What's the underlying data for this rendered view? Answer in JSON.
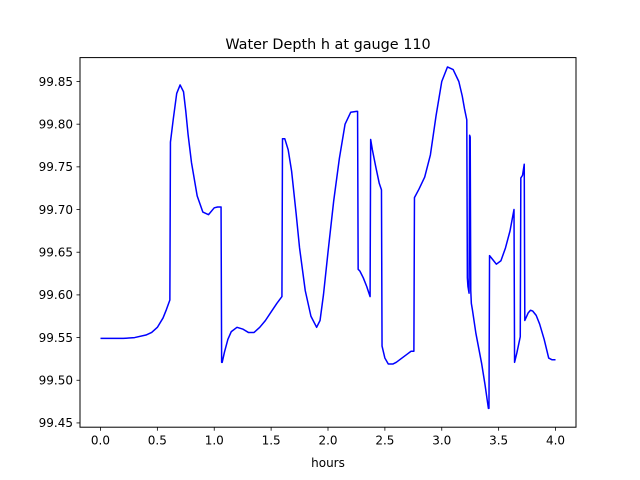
{
  "chart_data": {
    "type": "line",
    "title": "Water Depth h at gauge 110",
    "xlabel": "hours",
    "ylabel": "",
    "xlim": [
      -0.18,
      4.18
    ],
    "ylim": [
      99.445,
      99.878
    ],
    "grid": false,
    "x_ticks": [
      0.0,
      0.5,
      1.0,
      1.5,
      2.0,
      2.5,
      3.0,
      3.5,
      4.0
    ],
    "x_tick_labels": [
      "0.0",
      "0.5",
      "1.0",
      "1.5",
      "2.0",
      "2.5",
      "3.0",
      "3.5",
      "4.0"
    ],
    "y_ticks": [
      99.45,
      99.5,
      99.55,
      99.6,
      99.65,
      99.7,
      99.75,
      99.8,
      99.85
    ],
    "y_tick_labels": [
      "99.45",
      "99.50",
      "99.55",
      "99.60",
      "99.65",
      "99.70",
      "99.75",
      "99.80",
      "99.85"
    ],
    "series": [
      {
        "color": "#0000ff",
        "x": [
          0.0,
          0.1,
          0.2,
          0.3,
          0.4,
          0.45,
          0.5,
          0.55,
          0.58,
          0.61,
          0.615,
          0.64,
          0.67,
          0.7,
          0.73,
          0.75,
          0.77,
          0.8,
          0.85,
          0.9,
          0.95,
          1.0,
          1.03,
          1.06,
          1.065,
          1.07,
          1.09,
          1.12,
          1.15,
          1.2,
          1.25,
          1.3,
          1.35,
          1.4,
          1.45,
          1.5,
          1.55,
          1.595,
          1.6,
          1.62,
          1.65,
          1.68,
          1.72,
          1.75,
          1.8,
          1.85,
          1.9,
          1.93,
          1.96,
          2.0,
          2.05,
          2.1,
          2.15,
          2.2,
          2.25,
          2.26,
          2.265,
          2.28,
          2.31,
          2.34,
          2.37,
          2.375,
          2.39,
          2.42,
          2.45,
          2.47,
          2.475,
          2.5,
          2.53,
          2.57,
          2.6,
          2.65,
          2.7,
          2.73,
          2.755,
          2.76,
          2.8,
          2.85,
          2.9,
          2.95,
          3.0,
          3.05,
          3.1,
          3.15,
          3.18,
          3.2,
          3.22,
          3.225,
          3.23,
          3.24,
          3.245,
          3.25,
          3.255,
          3.26,
          3.27,
          3.3,
          3.35,
          3.38,
          3.41,
          3.415,
          3.42,
          3.45,
          3.48,
          3.52,
          3.56,
          3.6,
          3.635,
          3.64,
          3.66,
          3.69,
          3.695,
          3.71,
          3.725,
          3.73,
          3.76,
          3.78,
          3.8,
          3.83,
          3.86,
          3.9,
          3.94,
          3.97,
          4.0
        ],
        "y": [
          99.549,
          99.549,
          99.549,
          99.55,
          99.553,
          99.556,
          99.562,
          99.573,
          99.583,
          99.594,
          99.779,
          99.806,
          99.836,
          99.846,
          99.838,
          99.815,
          99.788,
          99.755,
          99.716,
          99.697,
          99.694,
          99.702,
          99.703,
          99.703,
          99.521,
          99.521,
          99.533,
          99.548,
          99.557,
          99.562,
          99.56,
          99.556,
          99.556,
          99.562,
          99.57,
          99.58,
          99.59,
          99.598,
          99.783,
          99.783,
          99.77,
          99.745,
          99.695,
          99.655,
          99.605,
          99.575,
          99.562,
          99.57,
          99.6,
          99.65,
          99.71,
          99.76,
          99.8,
          99.814,
          99.815,
          99.815,
          99.63,
          99.628,
          99.62,
          99.61,
          99.598,
          99.782,
          99.77,
          99.75,
          99.731,
          99.723,
          99.54,
          99.526,
          99.519,
          99.519,
          99.521,
          99.526,
          99.531,
          99.534,
          99.534,
          99.714,
          99.724,
          99.738,
          99.764,
          99.81,
          99.85,
          99.867,
          99.864,
          99.85,
          99.833,
          99.818,
          99.805,
          99.62,
          99.61,
          99.602,
          99.787,
          99.785,
          99.605,
          99.59,
          99.582,
          99.555,
          99.52,
          99.495,
          99.467,
          99.467,
          99.646,
          99.641,
          99.636,
          99.64,
          99.655,
          99.675,
          99.7,
          99.521,
          99.532,
          99.551,
          99.737,
          99.74,
          99.753,
          99.57,
          99.579,
          99.582,
          99.581,
          99.576,
          99.566,
          99.548,
          99.526,
          99.524,
          99.524
        ]
      }
    ]
  }
}
